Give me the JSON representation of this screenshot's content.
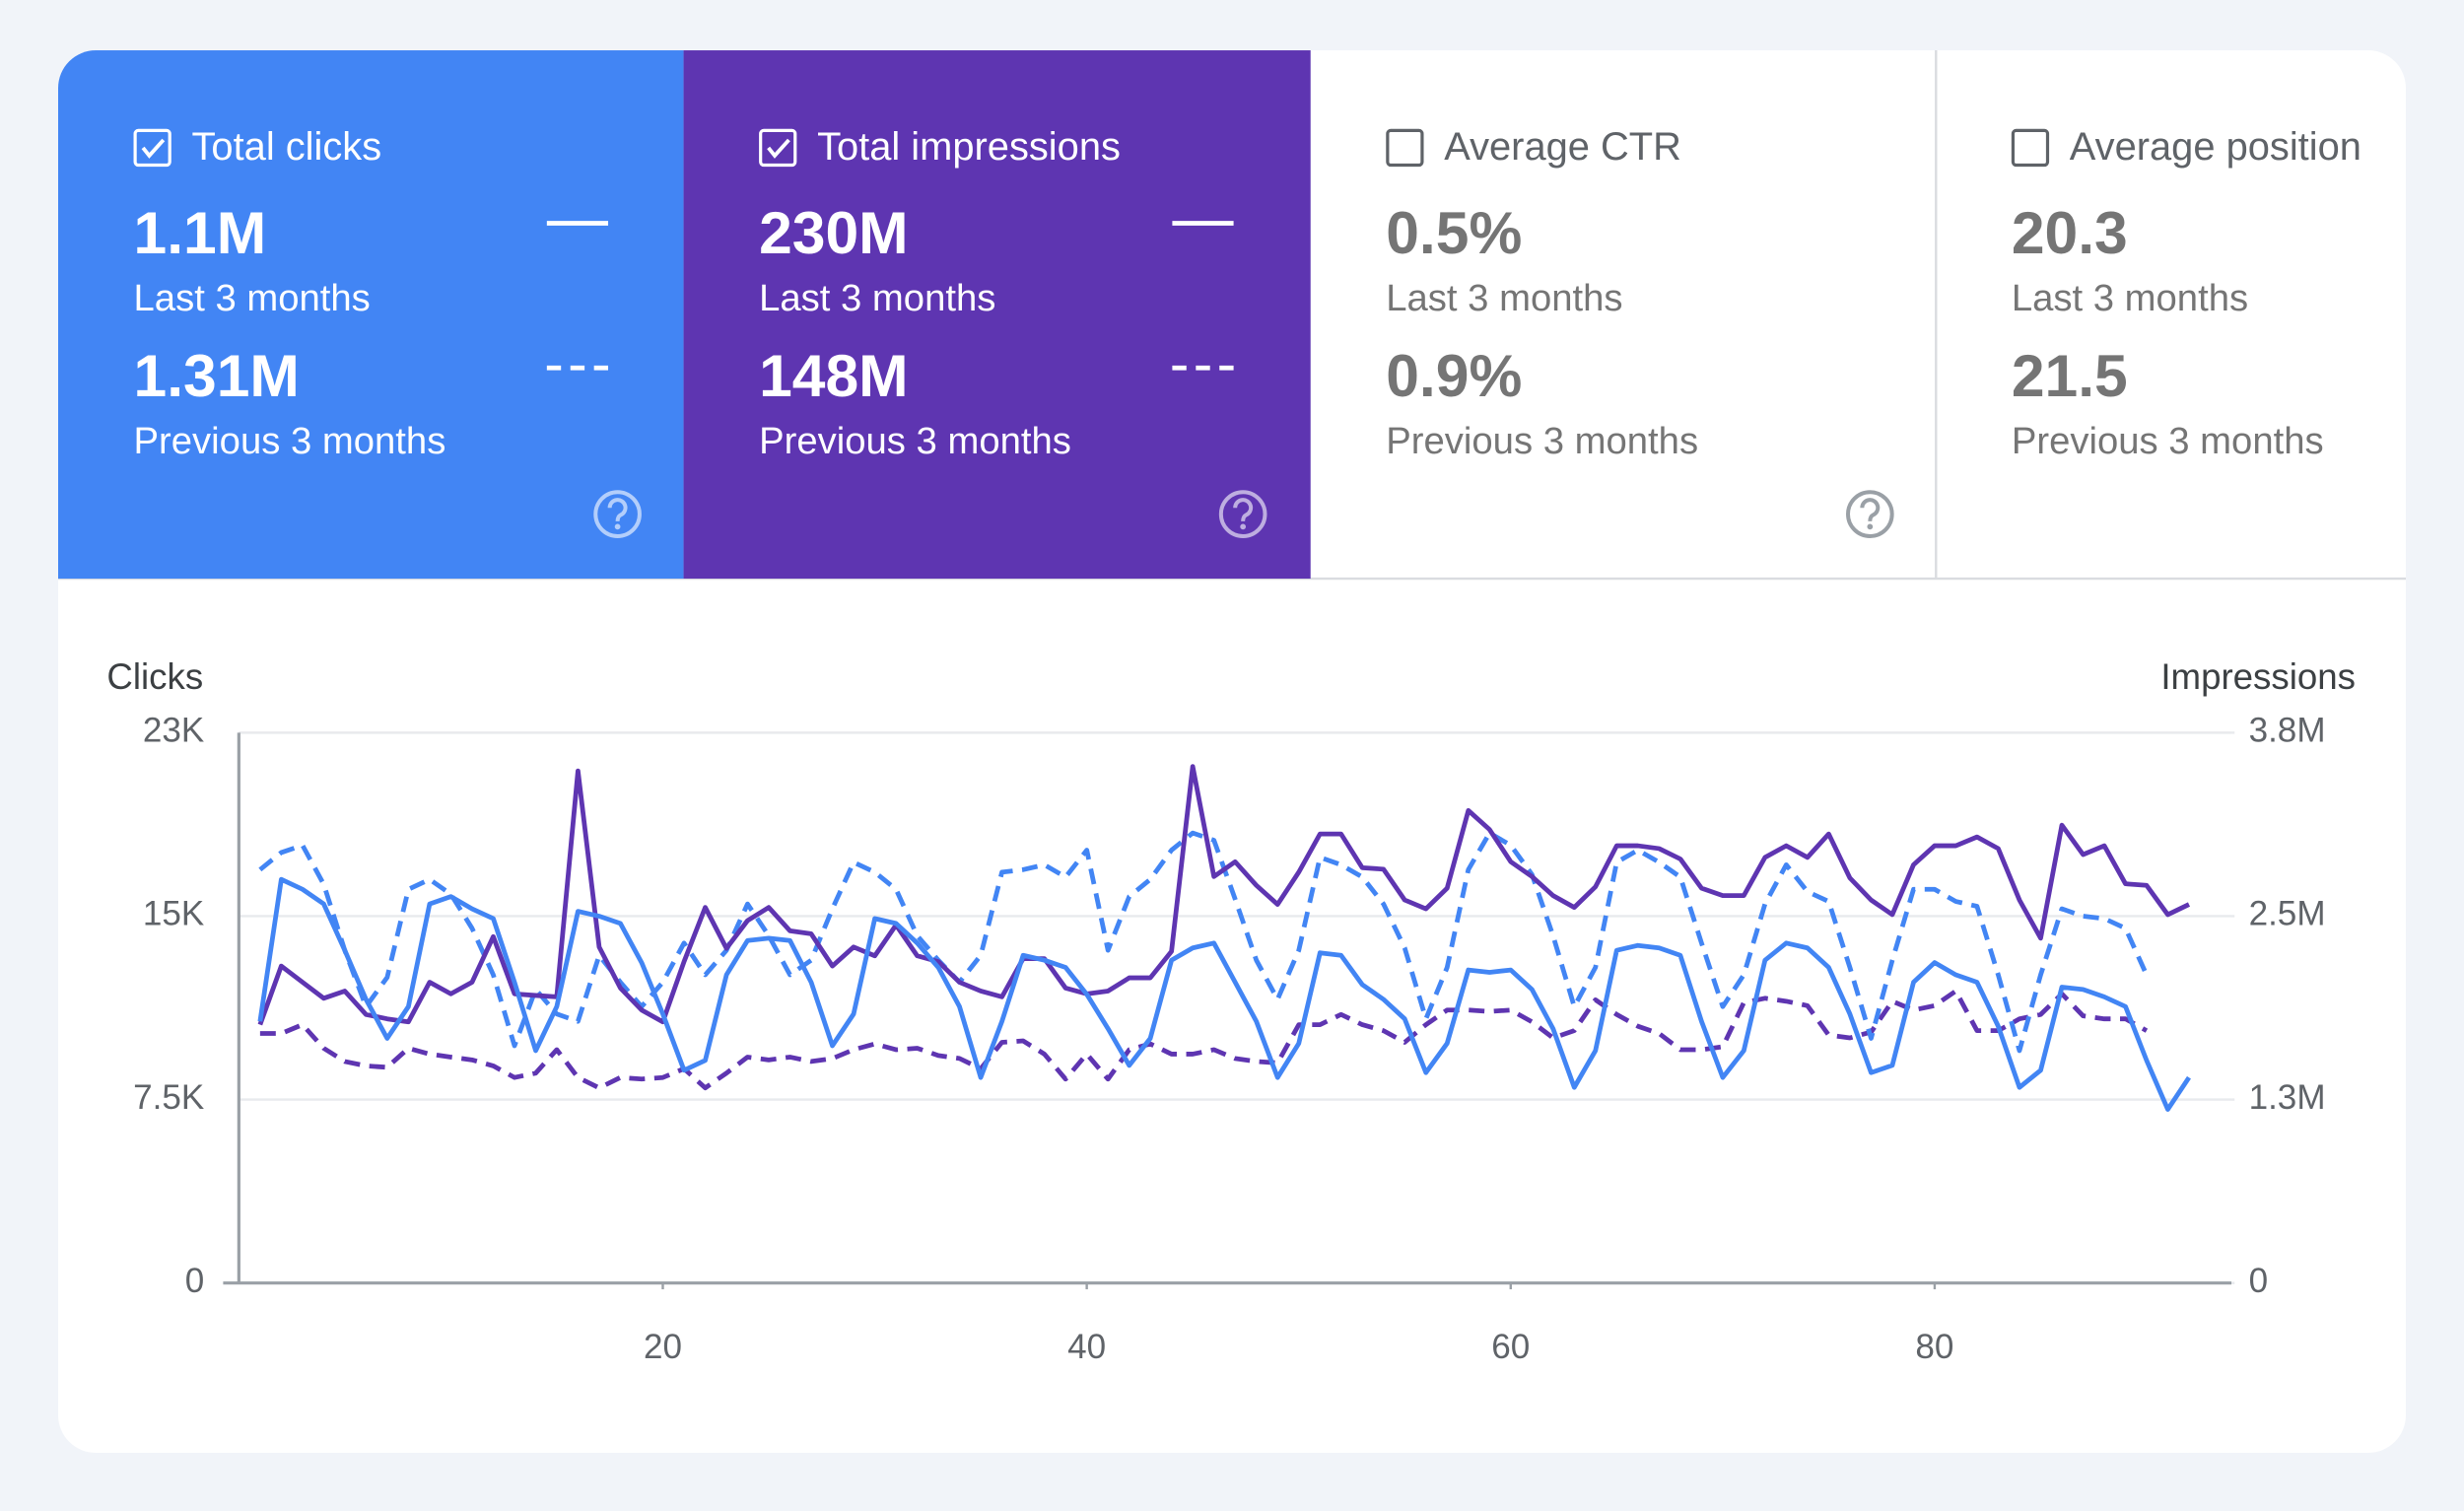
{
  "cards": [
    {
      "title": "Total clicks",
      "checked": true,
      "color": "#4285f4",
      "help": true,
      "current": {
        "value": "1.1M",
        "label": "Last 3 months"
      },
      "previous": {
        "value": "1.31M",
        "label": "Previous 3 months"
      }
    },
    {
      "title": "Total impressions",
      "checked": true,
      "color": "#5e35b1",
      "help": true,
      "current": {
        "value": "230M",
        "label": "Last 3 months"
      },
      "previous": {
        "value": "148M",
        "label": "Previous 3 months"
      }
    },
    {
      "title": "Average CTR",
      "checked": false,
      "help": true,
      "current": {
        "value": "0.5%",
        "label": "Last 3 months"
      },
      "previous": {
        "value": "0.9%",
        "label": "Previous 3 months"
      }
    },
    {
      "title": "Average position",
      "checked": false,
      "help": false,
      "current": {
        "value": "20.3",
        "label": "Last 3 months"
      },
      "previous": {
        "value": "21.5",
        "label": "Previous 3 months"
      }
    }
  ],
  "chart_data": {
    "type": "line",
    "y_label": "Clicks",
    "y2_label": "Impressions",
    "grid": true,
    "x": [
      1,
      2,
      3,
      4,
      5,
      6,
      7,
      8,
      9,
      10,
      11,
      12,
      13,
      14,
      15,
      16,
      17,
      18,
      19,
      20,
      21,
      22,
      23,
      24,
      25,
      26,
      27,
      28,
      29,
      30,
      31,
      32,
      33,
      34,
      35,
      36,
      37,
      38,
      39,
      40,
      41,
      42,
      43,
      44,
      45,
      46,
      47,
      48,
      49,
      50,
      51,
      52,
      53,
      54,
      55,
      56,
      57,
      58,
      59,
      60,
      61,
      62,
      63,
      64,
      65,
      66,
      67,
      68,
      69,
      70,
      71,
      72,
      73,
      74,
      75,
      76,
      77,
      78,
      79,
      80,
      81,
      82,
      83,
      84,
      85,
      86,
      87,
      88,
      89,
      90,
      91,
      92
    ],
    "xlim": [
      0,
      94
    ],
    "xticks": [
      20,
      40,
      60,
      80
    ],
    "ylim": [
      0,
      22500
    ],
    "yticks": [
      0,
      {
        "value": 7500,
        "label": "7.5K"
      },
      {
        "value": 15000,
        "label": "15K"
      },
      {
        "value": 22500,
        "label": "23K"
      }
    ],
    "y2lim": [
      0,
      3750000
    ],
    "y2ticks": [
      0,
      {
        "value": 1250000,
        "label": "1.3M"
      },
      {
        "value": 2500000,
        "label": "2.5M"
      },
      {
        "value": 3750000,
        "label": "3.8M"
      }
    ],
    "series": [
      {
        "color": "#5e35b1",
        "dashed": true,
        "axis": "y2",
        "values": [
          1700000,
          1700000,
          1760000,
          1600000,
          1510000,
          1480000,
          1470000,
          1600000,
          1560000,
          1540000,
          1520000,
          1480000,
          1400000,
          1430000,
          1590000,
          1400000,
          1330000,
          1400000,
          1390000,
          1400000,
          1460000,
          1330000,
          1430000,
          1540000,
          1520000,
          1540000,
          1510000,
          1530000,
          1590000,
          1630000,
          1590000,
          1600000,
          1550000,
          1530000,
          1460000,
          1640000,
          1650000,
          1560000,
          1390000,
          1560000,
          1390000,
          1590000,
          1630000,
          1560000,
          1560000,
          1590000,
          1530000,
          1510000,
          1500000,
          1760000,
          1760000,
          1830000,
          1760000,
          1720000,
          1640000,
          1760000,
          1860000,
          1860000,
          1850000,
          1860000,
          1780000,
          1670000,
          1720000,
          1930000,
          1830000,
          1750000,
          1700000,
          1590000,
          1590000,
          1610000,
          1910000,
          1940000,
          1920000,
          1890000,
          1690000,
          1670000,
          1710000,
          1920000,
          1860000,
          1890000,
          1990000,
          1720000,
          1720000,
          1800000,
          1830000,
          1970000,
          1820000,
          1800000,
          1800000,
          1720000,
          null,
          null
        ]
      },
      {
        "color": "#4285f4",
        "dashed": true,
        "axis": "y",
        "values": [
          16900,
          17600,
          17900,
          16300,
          13600,
          11300,
          12500,
          16100,
          16500,
          15900,
          14500,
          12600,
          9700,
          12000,
          11000,
          10700,
          13400,
          12300,
          11300,
          12300,
          13900,
          12600,
          13600,
          15500,
          14200,
          12600,
          13200,
          15300,
          17200,
          16800,
          16100,
          14200,
          13200,
          12300,
          13400,
          16800,
          16900,
          17100,
          16600,
          17700,
          13600,
          15800,
          16500,
          17700,
          18400,
          18100,
          15700,
          13200,
          11600,
          13600,
          17400,
          17100,
          16600,
          15500,
          13700,
          10800,
          12900,
          16900,
          18400,
          17900,
          16700,
          14200,
          11300,
          12900,
          17200,
          17700,
          17200,
          16600,
          13900,
          11300,
          12600,
          15500,
          17100,
          16000,
          15600,
          12900,
          10000,
          13200,
          16100,
          16100,
          15600,
          15400,
          12600,
          9500,
          12600,
          15300,
          15000,
          14900,
          14500,
          12600,
          null,
          null
        ]
      },
      {
        "color": "#5e35b1",
        "dashed": false,
        "axis": "y2",
        "values": [
          1760000,
          2160000,
          2050000,
          1940000,
          1990000,
          1830000,
          1800000,
          1780000,
          2050000,
          1970000,
          2050000,
          2360000,
          1970000,
          1960000,
          1950000,
          3490000,
          2290000,
          2010000,
          1860000,
          1780000,
          2190000,
          2560000,
          2280000,
          2470000,
          2560000,
          2400000,
          2380000,
          2160000,
          2290000,
          2230000,
          2440000,
          2230000,
          2190000,
          2050000,
          1990000,
          1950000,
          2210000,
          2210000,
          2010000,
          1970000,
          1990000,
          2080000,
          2080000,
          2260000,
          3520000,
          2770000,
          2870000,
          2710000,
          2580000,
          2800000,
          3060000,
          3060000,
          2830000,
          2820000,
          2610000,
          2550000,
          2690000,
          3220000,
          3090000,
          2870000,
          2770000,
          2640000,
          2560000,
          2700000,
          2980000,
          2980000,
          2960000,
          2890000,
          2690000,
          2640000,
          2640000,
          2900000,
          2980000,
          2900000,
          3060000,
          2760000,
          2610000,
          2510000,
          2850000,
          2980000,
          2980000,
          3040000,
          2960000,
          2610000,
          2350000,
          3120000,
          2920000,
          2980000,
          2720000,
          2710000,
          2510000,
          2580000
        ]
      },
      {
        "color": "#4285f4",
        "dashed": false,
        "axis": "y",
        "values": [
          10700,
          16500,
          16100,
          15500,
          13600,
          11600,
          10000,
          11300,
          15500,
          15800,
          15300,
          14900,
          12300,
          9500,
          11300,
          15200,
          15000,
          14700,
          13100,
          11000,
          8700,
          9100,
          12600,
          14000,
          14100,
          14000,
          12300,
          9700,
          11000,
          14900,
          14700,
          13900,
          12900,
          11300,
          8400,
          10700,
          13400,
          13200,
          12900,
          11800,
          10400,
          8900,
          10000,
          13200,
          13700,
          13900,
          12300,
          10700,
          8400,
          9800,
          13500,
          13400,
          12200,
          11600,
          10800,
          8600,
          9800,
          12800,
          12700,
          12800,
          12000,
          10400,
          8000,
          9500,
          13600,
          13800,
          13700,
          13400,
          10700,
          8400,
          9500,
          13200,
          13900,
          13700,
          12900,
          11000,
          8600,
          8900,
          12300,
          13100,
          12600,
          12300,
          10500,
          8000,
          8700,
          12100,
          12000,
          11700,
          11300,
          9100,
          7100,
          8400
        ]
      }
    ]
  }
}
